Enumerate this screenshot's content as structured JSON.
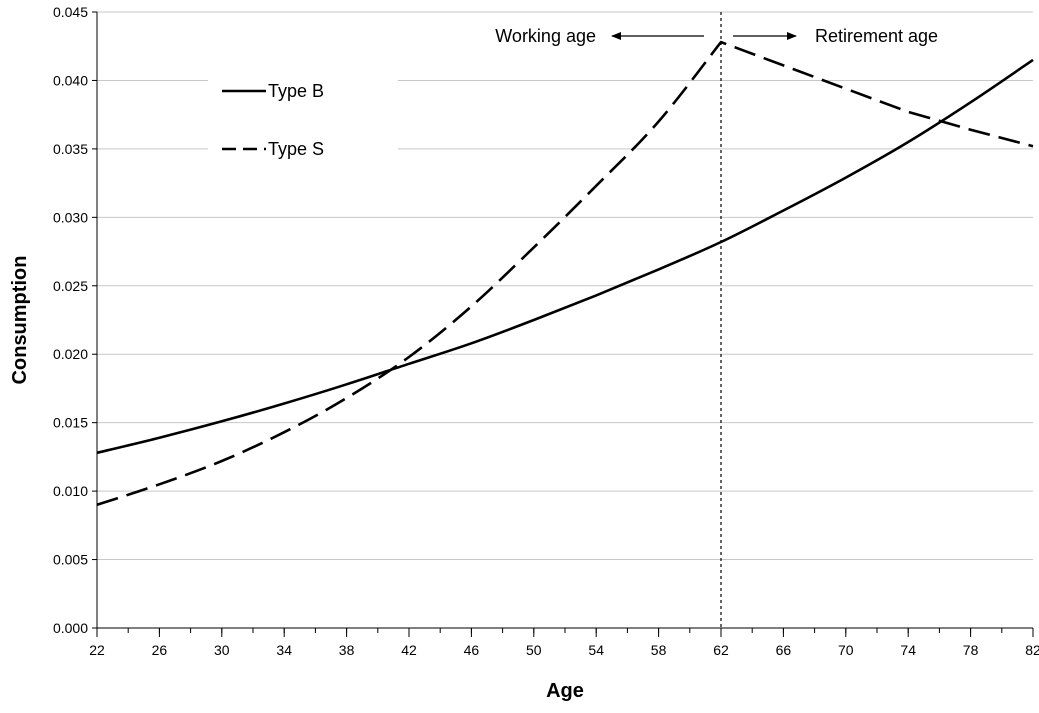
{
  "chart_data": {
    "type": "line",
    "title": "",
    "xlabel": "Age",
    "ylabel": "Consumption",
    "xlim": [
      22,
      82
    ],
    "ylim": [
      0,
      0.045
    ],
    "xticks": [
      22,
      26,
      30,
      34,
      38,
      42,
      46,
      50,
      54,
      58,
      62,
      66,
      70,
      74,
      78,
      82
    ],
    "xtick_labels": [
      "22",
      "26",
      "30",
      "34",
      "38",
      "42",
      "46",
      "50",
      "54",
      "58",
      "62",
      "66",
      "70",
      "74",
      "78",
      "82"
    ],
    "yticks": [
      0,
      0.005,
      0.01,
      0.015,
      0.02,
      0.025,
      0.03,
      0.035,
      0.04,
      0.045
    ],
    "ytick_labels": [
      "0.000",
      "0.005",
      "0.010",
      "0.015",
      "0.020",
      "0.025",
      "0.030",
      "0.035",
      "0.040",
      "0.045"
    ],
    "grid": "horizontal",
    "legend_position": "top-left",
    "retirement_age": 62,
    "annotations": [
      {
        "text": "Working age",
        "direction": "left"
      },
      {
        "text": "Retirement age",
        "direction": "right"
      }
    ],
    "series": [
      {
        "name": "Type B",
        "style": "solid",
        "color": "#000000",
        "x": [
          22,
          26,
          30,
          34,
          38,
          42,
          46,
          50,
          54,
          58,
          62,
          66,
          70,
          74,
          78,
          82
        ],
        "y": [
          0.0128,
          0.0139,
          0.0151,
          0.0164,
          0.0178,
          0.0193,
          0.0208,
          0.0225,
          0.0243,
          0.0262,
          0.0282,
          0.0305,
          0.0329,
          0.0355,
          0.0384,
          0.0415
        ]
      },
      {
        "name": "Type S",
        "style": "dashed",
        "color": "#000000",
        "x": [
          22,
          26,
          30,
          34,
          38,
          42,
          46,
          50,
          54,
          58,
          62,
          66,
          70,
          74,
          78,
          82
        ],
        "y": [
          0.009,
          0.0105,
          0.0122,
          0.0143,
          0.0168,
          0.0198,
          0.0235,
          0.0278,
          0.0323,
          0.037,
          0.0428,
          0.0411,
          0.0394,
          0.0377,
          0.0364,
          0.0352
        ]
      }
    ]
  }
}
